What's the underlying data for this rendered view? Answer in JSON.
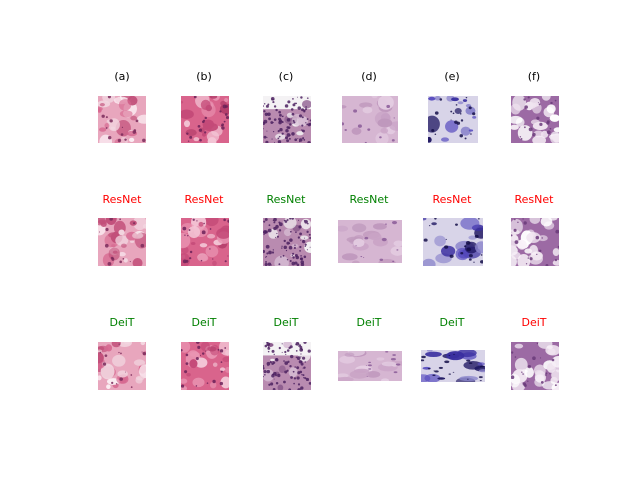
{
  "figure": {
    "rows": [
      {
        "cells": [
          {
            "label": "(a)",
            "label_color": "#000000",
            "tissue": "pink-fibrous"
          },
          {
            "label": "(b)",
            "label_color": "#000000",
            "tissue": "pink-nuclei"
          },
          {
            "label": "(c)",
            "label_color": "#000000",
            "tissue": "lymph-dense"
          },
          {
            "label": "(d)",
            "label_color": "#000000",
            "tissue": "pale-stroma"
          },
          {
            "label": "(e)",
            "label_color": "#000000",
            "tissue": "blue-cells"
          },
          {
            "label": "(f)",
            "label_color": "#000000",
            "tissue": "adipose"
          }
        ]
      },
      {
        "cells": [
          {
            "label": "ResNet",
            "label_color": "#ff0000",
            "tissue": "pink-fibrous"
          },
          {
            "label": "ResNet",
            "label_color": "#ff0000",
            "tissue": "pink-nuclei"
          },
          {
            "label": "ResNet",
            "label_color": "#008000",
            "tissue": "lymph-dense"
          },
          {
            "label": "ResNet",
            "label_color": "#008000",
            "tissue": "pale-stroma"
          },
          {
            "label": "ResNet",
            "label_color": "#ff0000",
            "tissue": "blue-cells"
          },
          {
            "label": "ResNet",
            "label_color": "#ff0000",
            "tissue": "adipose"
          }
        ]
      },
      {
        "cells": [
          {
            "label": "DeiT",
            "label_color": "#008000",
            "tissue": "pink-fibrous"
          },
          {
            "label": "DeiT",
            "label_color": "#008000",
            "tissue": "pink-nuclei"
          },
          {
            "label": "DeiT",
            "label_color": "#008000",
            "tissue": "lymph-dense"
          },
          {
            "label": "DeiT",
            "label_color": "#008000",
            "tissue": "pale-stroma"
          },
          {
            "label": "DeiT",
            "label_color": "#008000",
            "tissue": "blue-cells"
          },
          {
            "label": "DeiT",
            "label_color": "#ff0000",
            "tissue": "adipose"
          }
        ]
      }
    ]
  }
}
